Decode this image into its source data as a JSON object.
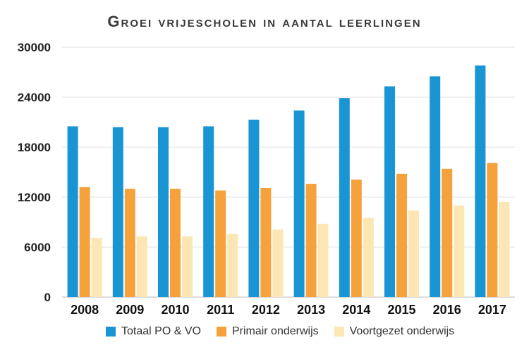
{
  "chart_data": {
    "type": "bar",
    "title": "Groei vrijescholen in aantal leerlingen",
    "categories": [
      "2008",
      "2009",
      "2010",
      "2011",
      "2012",
      "2013",
      "2014",
      "2015",
      "2016",
      "2017"
    ],
    "series": [
      {
        "name": "Totaal PO & VO",
        "color": "#1a95d4",
        "values": [
          20500,
          20400,
          20400,
          20500,
          21300,
          22400,
          23900,
          25300,
          26500,
          27800
        ]
      },
      {
        "name": "Primair onderwijs",
        "color": "#f5a23c",
        "values": [
          13200,
          13000,
          13000,
          12800,
          13100,
          13600,
          14100,
          14800,
          15400,
          16100
        ]
      },
      {
        "name": "Voortgezet onderwijs",
        "color": "#fbe6b4",
        "values": [
          7100,
          7300,
          7300,
          7600,
          8100,
          8800,
          9500,
          10400,
          11000,
          11400
        ]
      }
    ],
    "yticks": [
      0,
      6000,
      12000,
      18000,
      24000,
      30000
    ],
    "ylim": [
      0,
      30000
    ],
    "grid": true,
    "legend_position": "bottom"
  }
}
